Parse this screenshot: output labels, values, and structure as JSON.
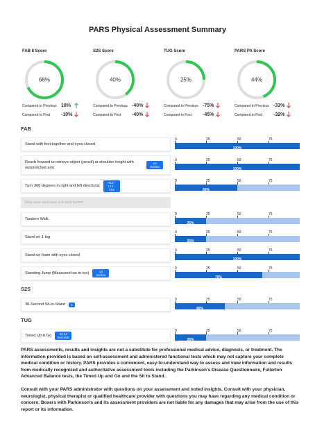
{
  "title": "PARS Physical Assessment Summary",
  "score_lim": [
    0,
    100
  ],
  "scores": [
    {
      "label": "FAB 8 Score",
      "score": {
        "value": 68,
        "label": "68%"
      },
      "comparisons": [
        {
          "label": "Compared to Previous",
          "value": "18%",
          "trend": "up"
        },
        {
          "label": "Compared to First",
          "value": "-10%",
          "trend": "down"
        }
      ]
    },
    {
      "label": "S2S Score",
      "score": {
        "value": 40,
        "label": "40%"
      },
      "comparisons": [
        {
          "label": "Compared to Previous",
          "value": "-40%",
          "trend": "down"
        },
        {
          "label": "Compared to First",
          "value": "-40%",
          "trend": "down"
        }
      ]
    },
    {
      "label": "TUG Score",
      "score": {
        "value": 25,
        "label": "25%"
      },
      "comparisons": [
        {
          "label": "Compared to Previous",
          "value": "-75%",
          "trend": "down"
        },
        {
          "label": "Compared to First",
          "value": "-45%",
          "trend": "down"
        }
      ]
    },
    {
      "label": "PARS PA Score",
      "score": {
        "value": 44,
        "label": "44%"
      },
      "comparisons": [
        {
          "label": "Compared to Previous",
          "value": "-33%",
          "trend": "down"
        },
        {
          "label": "Compared to First",
          "value": "-32%",
          "trend": "down"
        }
      ]
    }
  ],
  "bar_scale": {
    "xlim": [
      0,
      100
    ],
    "xticks": [
      0,
      25,
      50,
      75
    ]
  },
  "sections": [
    {
      "heading": "FAB",
      "items": [
        {
          "label": "Stand with feet together and eyes closed",
          "result": {
            "value": 100,
            "label": "100%"
          }
        },
        {
          "label": "Reach forward to retrieve object (pencil) at shoulder height with outstretched arm",
          "badge": "10 Inches",
          "result": {
            "value": 100,
            "label": "100%"
          }
        },
        {
          "label": "Turn 360 degrees in right and left directions",
          "badge": "R12 - L12 - T24",
          "result": {
            "value": 50,
            "label": "50%"
          }
        },
        {
          "label": "Step onto and over a 6-inch bench"
        },
        {
          "label": "Tandem Walk",
          "result": {
            "value": 25,
            "label": "25%"
          }
        },
        {
          "label": "Stand on 1 leg",
          "result": {
            "value": 25,
            "label": "25%"
          }
        },
        {
          "label": "Stand on foam with eyes closed",
          "result": {
            "value": 100,
            "label": "100%"
          }
        },
        {
          "label": "Standing Jump (Measured toe to toe)",
          "badge": "14 Inches",
          "result": {
            "value": 70,
            "label": "70%"
          }
        }
      ]
    },
    {
      "heading": "S2S",
      "items": [
        {
          "label": "30-Second Sit-to-Stand",
          "badge": "4",
          "result": {
            "value": 40,
            "label": "40%"
          }
        }
      ]
    },
    {
      "heading": "TUG",
      "items": [
        {
          "label": "Timed Up & Go",
          "badge": "22.44 Seconds",
          "result": {
            "value": 25,
            "label": "25%"
          }
        }
      ]
    }
  ],
  "disclaimer": [
    "PARS assessments, results and insights are not a substitute for professional medical advice, diagnosis, or treatment. The information provided is based on self-assessment and administered functional tests which may not capture your complete medical condition or history. PARS provides a convenient, easy-to-understand way to assess and view information and results from medically recognized and authoritative assessment tools including the Parkinson's Disease Questionnaire, Fullerton Advanced Balance tests, the Timed Up and Go and the Sit to Stand..",
    "Consult with your PARS administrator with questions on your assessment and noted insights. Consult with your physician, neurologist, physical therapist or qualified healthcare provider with questions you may have regarding any medical condition or concern. Boxers with Parkinson's and its assessment providers are not liable for any damages that may arise from the use of this report or its information."
  ]
}
